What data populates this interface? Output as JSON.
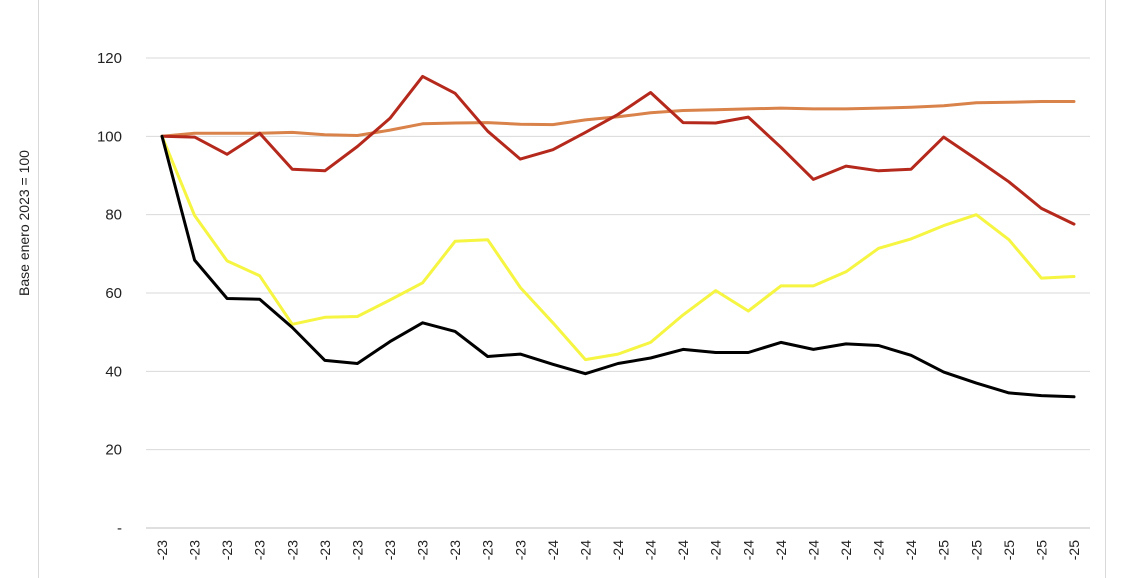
{
  "chart_data": {
    "type": "line",
    "ylabel": "Base enero 2023 = 100",
    "ylim": [
      0,
      120
    ],
    "y_ticks": [
      {
        "value": 0,
        "label": "-"
      },
      {
        "value": 20,
        "label": "20"
      },
      {
        "value": 40,
        "label": "40"
      },
      {
        "value": 60,
        "label": "60"
      },
      {
        "value": 80,
        "label": "80"
      },
      {
        "value": 100,
        "label": "100"
      },
      {
        "value": 120,
        "label": "120"
      }
    ],
    "grid": true,
    "x_tick_labels": [
      "-23",
      "-23",
      "-23",
      "-23",
      "-23",
      "-23",
      "-23",
      "-23",
      "-23",
      "-23",
      "-23",
      "-23",
      "-24",
      "-24",
      "-24",
      "-24",
      "-24",
      "-24",
      "-24",
      "-24",
      "-24",
      "-24",
      "-24",
      "-24",
      "-25",
      "-25",
      "-25",
      "-25",
      "-25"
    ],
    "series": [
      {
        "color": "#d9824a",
        "values": [
          100,
          100.8,
          100.8,
          100.8,
          101,
          100.4,
          100.2,
          101.6,
          103.2,
          103.4,
          103.5,
          103.1,
          103,
          104.2,
          105,
          106,
          106.6,
          106.8,
          107,
          107.2,
          107,
          107,
          107.2,
          107.4,
          107.8,
          108.6,
          108.7,
          108.9,
          108.9
        ]
      },
      {
        "color": "#b5291c",
        "values": [
          100,
          99.8,
          95.4,
          100.8,
          91.6,
          91.2,
          97.4,
          104.6,
          115.3,
          111,
          101.3,
          94.2,
          96.6,
          101,
          105.6,
          111.2,
          103.5,
          103.4,
          104.9,
          97.2,
          89,
          92.4,
          91.2,
          91.6,
          99.8,
          94.2,
          88.4,
          81.6,
          77.6
        ]
      },
      {
        "color": "#f5f542",
        "values": [
          100,
          79.8,
          68.2,
          64.4,
          52,
          53.8,
          54,
          58.2,
          62.6,
          73.2,
          73.6,
          61.4,
          52.4,
          43,
          44.4,
          47.4,
          54.4,
          60.6,
          55.4,
          61.8,
          61.8,
          65.4,
          71.4,
          73.8,
          77.2,
          80,
          73.6,
          63.8,
          64.2
        ]
      },
      {
        "color": "#000000",
        "values": [
          100,
          68.4,
          58.6,
          58.4,
          51.2,
          42.8,
          42,
          47.6,
          52.4,
          50.2,
          43.8,
          44.4,
          41.8,
          39.4,
          42,
          43.4,
          45.6,
          44.8,
          44.8,
          47.4,
          45.6,
          47,
          46.6,
          44.1,
          39.8,
          37,
          34.5,
          33.8,
          33.5
        ]
      }
    ]
  }
}
